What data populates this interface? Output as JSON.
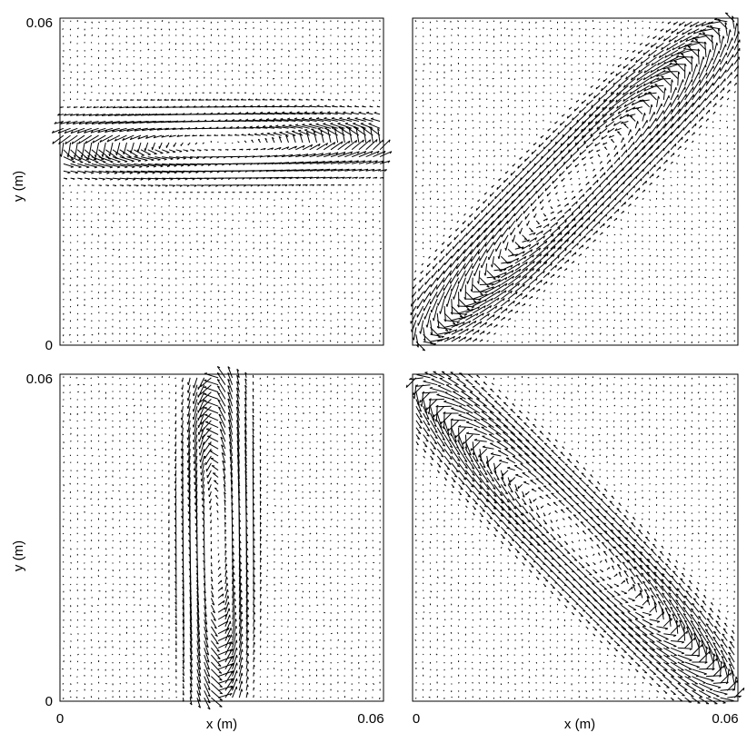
{
  "figure": {
    "background": "#ffffff",
    "ink": "#000000"
  },
  "chart_data": [
    {
      "type": "quiver",
      "panel": "top-left",
      "xlim": [
        0,
        0.06
      ],
      "ylim": [
        0,
        0.06
      ],
      "x_ticks": [],
      "y_ticks": [
        "0",
        "0.06"
      ],
      "xlabel": "",
      "ylabel": "y (m)",
      "field": {
        "pattern": "elongated vortex",
        "center": [
          0.03,
          0.037
        ],
        "orientation_deg": 0,
        "semi_major": 0.028,
        "semi_minor": 0.0055
      }
    },
    {
      "type": "quiver",
      "panel": "top-right",
      "xlim": [
        0,
        0.06
      ],
      "ylim": [
        0,
        0.06
      ],
      "x_ticks": [],
      "y_ticks": [],
      "xlabel": "",
      "ylabel": "",
      "field": {
        "pattern": "elongated vortex",
        "center": [
          0.03,
          0.03
        ],
        "orientation_deg": 45,
        "semi_major": 0.036,
        "semi_minor": 0.0065
      }
    },
    {
      "type": "quiver",
      "panel": "bottom-left",
      "xlim": [
        0,
        0.06
      ],
      "ylim": [
        0,
        0.06
      ],
      "x_ticks": [
        "0",
        "0.06"
      ],
      "y_ticks": [
        "0",
        "0.06"
      ],
      "xlabel": "x (m)",
      "ylabel": "y (m)",
      "field": {
        "pattern": "elongated vortex",
        "center": [
          0.029,
          0.03
        ],
        "orientation_deg": 90,
        "semi_major": 0.028,
        "semi_minor": 0.0055
      }
    },
    {
      "type": "quiver",
      "panel": "bottom-right",
      "xlim": [
        0,
        0.06
      ],
      "ylim": [
        0,
        0.06
      ],
      "x_ticks": [
        "0",
        "0.06"
      ],
      "y_ticks": [],
      "xlabel": "x (m)",
      "ylabel": "",
      "field": {
        "pattern": "elongated vortex",
        "center": [
          0.03,
          0.03
        ],
        "orientation_deg": -45,
        "semi_major": 0.038,
        "semi_minor": 0.0065
      }
    }
  ]
}
